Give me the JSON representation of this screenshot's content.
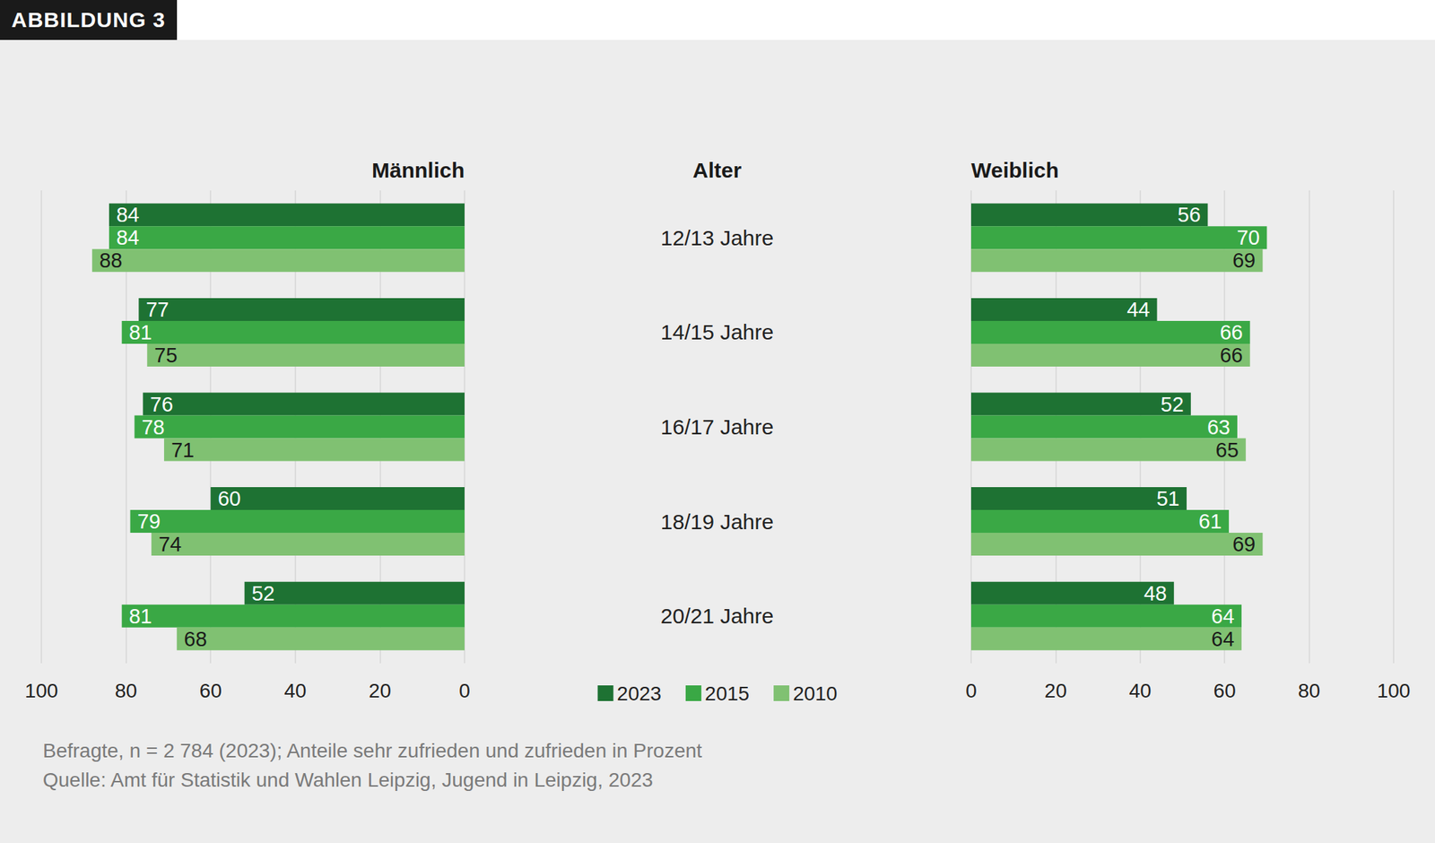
{
  "figure_label": "ABBILDUNG 3",
  "chart_data": {
    "type": "bar",
    "orientation": "horizontal",
    "data_labels": true,
    "grid": true,
    "legend": "bottom",
    "category_title": "Alter",
    "categories": [
      "12/13 Jahre",
      "14/15 Jahre",
      "16/17 Jahre",
      "18/19 Jahre",
      "20/21 Jahre"
    ],
    "panels": [
      {
        "title": "Männlich",
        "xlim": [
          0,
          100
        ],
        "xticks": [
          0,
          20,
          40,
          60,
          80,
          100
        ],
        "series": [
          {
            "name": "2023",
            "color": "#1e7233",
            "values": [
              84,
              77,
              76,
              60,
              52
            ]
          },
          {
            "name": "2015",
            "color": "#3aa845",
            "values": [
              84,
              81,
              78,
              79,
              81
            ]
          },
          {
            "name": "2010",
            "color": "#80c172",
            "values": [
              88,
              75,
              71,
              74,
              68
            ]
          }
        ]
      },
      {
        "title": "Weiblich",
        "xlim": [
          0,
          100
        ],
        "xticks": [
          0,
          20,
          40,
          60,
          80,
          100
        ],
        "series": [
          {
            "name": "2023",
            "color": "#1e7233",
            "values": [
              56,
              44,
              52,
              51,
              48
            ]
          },
          {
            "name": "2015",
            "color": "#3aa845",
            "values": [
              70,
              66,
              63,
              61,
              64
            ]
          },
          {
            "name": "2010",
            "color": "#80c172",
            "values": [
              69,
              66,
              65,
              69,
              64
            ]
          }
        ]
      }
    ]
  },
  "notes": [
    "Befragte, n = 2 784 (2023); Anteile sehr zufrieden und zufrieden in Prozent",
    "Quelle: Amt für Statistik und Wahlen Leipzig, Jugend in Leipzig, 2023"
  ]
}
